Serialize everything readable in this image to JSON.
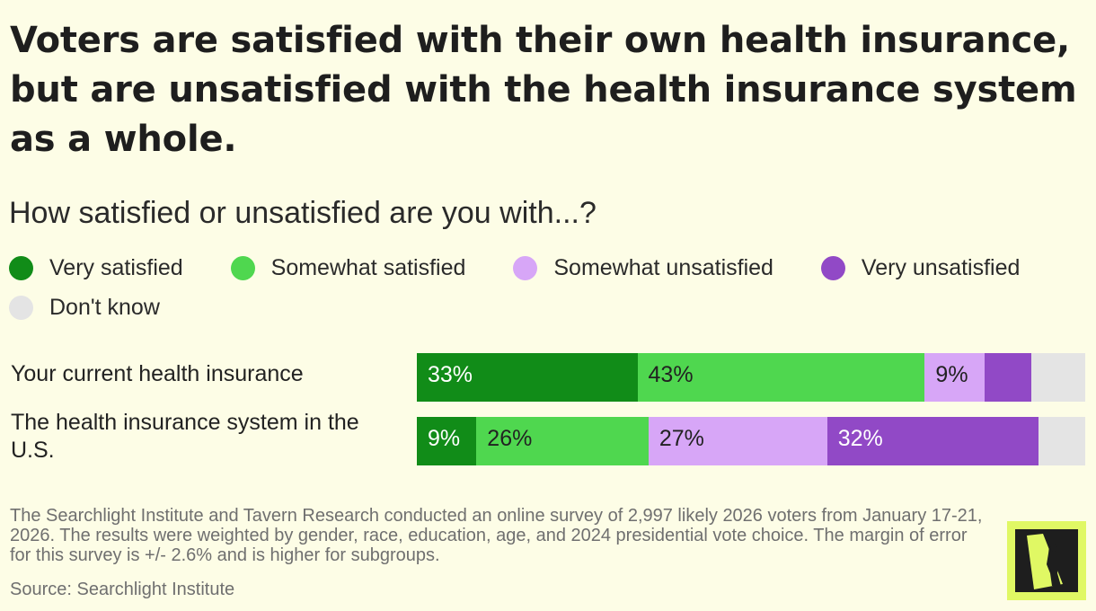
{
  "title": "Voters are satisfied with their own health insurance, but are unsatisfied with the health insurance system as a whole.",
  "subtitle": "How satisfied or unsatisfied are you with...?",
  "colors": {
    "very_satisfied": "#118c18",
    "somewhat_satisfied": "#4fd74f",
    "somewhat_unsatisfied": "#d7a6f7",
    "very_unsatisfied": "#9149c6",
    "dont_know": "#e4e4e4",
    "background": "#fdfde6",
    "logo_bg": "#e0f864"
  },
  "chart_data": {
    "type": "bar",
    "orientation": "horizontal",
    "stacked": true,
    "legend_position": "top",
    "categories": [
      "Your current health insurance",
      "The health insurance system in the U.S."
    ],
    "series": [
      {
        "name": "Very satisfied",
        "values": [
          33,
          9
        ],
        "labels": [
          "33%",
          "9%"
        ]
      },
      {
        "name": "Somewhat satisfied",
        "values": [
          43,
          26
        ],
        "labels": [
          "43%",
          "26%"
        ]
      },
      {
        "name": "Somewhat unsatisfied",
        "values": [
          9,
          27
        ],
        "labels": [
          "9%",
          "27%"
        ]
      },
      {
        "name": "Very unsatisfied",
        "values": [
          7,
          32
        ],
        "labels": [
          "",
          "32%"
        ]
      },
      {
        "name": "Don't know",
        "values": [
          8,
          7
        ],
        "labels": [
          "",
          ""
        ]
      }
    ]
  },
  "footnote": "The Searchlight Institute and Tavern Research conducted an online survey of 2,997 likely 2026 voters from January 17-21, 2026. The results were weighted by gender, race, education, age, and 2024 presidential vote choice. The margin of error for this survey is +/- 2.6% and is higher for subgroups.",
  "source": "Source: Searchlight Institute"
}
